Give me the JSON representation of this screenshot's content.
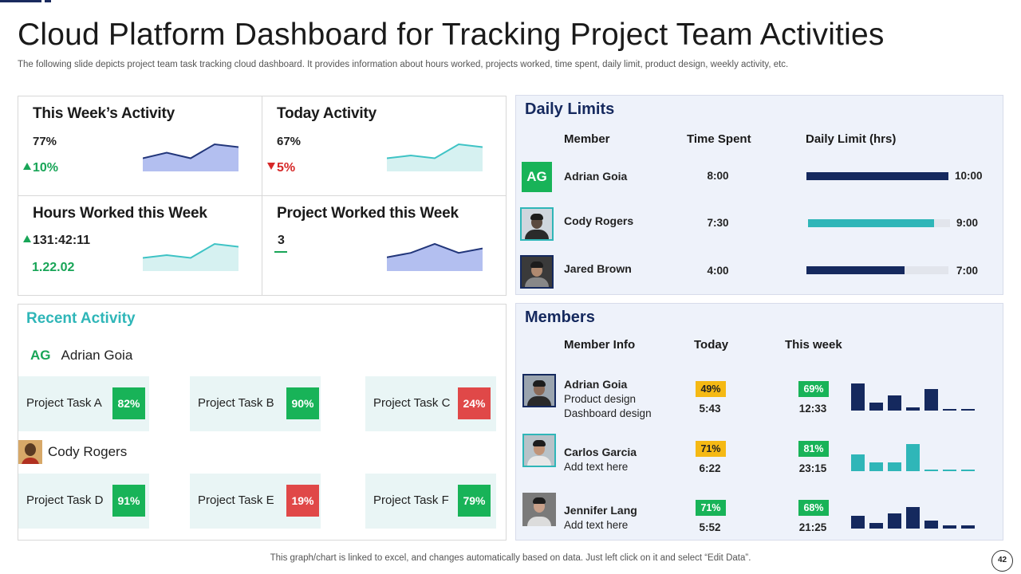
{
  "title": "Cloud Platform Dashboard for Tracking Project Team Activities",
  "subtitle": "The following slide depicts project team task tracking cloud dashboard. It provides information about hours worked, projects worked, time spent, daily limit, product design, weekly activity,  etc.",
  "activity": {
    "week": {
      "title": "This Week’s Activity",
      "value": "77%",
      "delta": "10%",
      "direction": "up",
      "trend": [
        3,
        5,
        3,
        8,
        7
      ]
    },
    "today": {
      "title": "Today Activity",
      "value": "67%",
      "delta": "5%",
      "direction": "down",
      "trend": [
        3,
        4,
        3,
        8,
        7
      ]
    },
    "hours": {
      "title": "Hours Worked this Week",
      "value": "131:42:11",
      "direction": "up",
      "sub": "1.22.02",
      "trend": [
        3,
        4,
        3,
        8,
        7
      ]
    },
    "projects": {
      "title": "Project Worked this Week",
      "value": "3",
      "trend": [
        2,
        3,
        5,
        3,
        4
      ]
    }
  },
  "recent": {
    "title": "Recent Activity",
    "people": [
      {
        "initials": "AG",
        "name": "Adrian Goia",
        "tasks": [
          {
            "label": "Project  Task A",
            "pct": "82%",
            "status": "green"
          },
          {
            "label": "Project  Task B",
            "pct": "90%",
            "status": "green"
          },
          {
            "label": "Project  Task C",
            "pct": "24%",
            "status": "red"
          }
        ]
      },
      {
        "initials": "",
        "name": "Cody Rogers",
        "tasks": [
          {
            "label": "Project  Task D",
            "pct": "91%",
            "status": "green"
          },
          {
            "label": "Project  Task E",
            "pct": "19%",
            "status": "red"
          },
          {
            "label": "Project  Task F",
            "pct": "79%",
            "status": "green"
          }
        ]
      }
    ]
  },
  "daily_limits": {
    "title": "Daily Limits",
    "headers": {
      "member": "Member",
      "time_spent": "Time Spent",
      "limit": "Daily Limit (hrs)"
    },
    "rows": [
      {
        "avatar": "AG",
        "name": "Adrian Goia",
        "time": "8:00",
        "limit": "10:00",
        "fraction": 1.0,
        "color": "#15295e"
      },
      {
        "avatar": "",
        "name": "Cody Rogers",
        "time": "7:30",
        "limit": "9:00",
        "fraction": 0.89,
        "color": "#2fb6b8"
      },
      {
        "avatar": "",
        "name": "Jared Brown",
        "time": "4:00",
        "limit": "7:00",
        "fraction": 0.69,
        "color": "#15295e"
      }
    ]
  },
  "members": {
    "title": "Members",
    "headers": {
      "info": "Member Info",
      "today": "Today",
      "week": "This week"
    },
    "rows": [
      {
        "name": "Adrian Goia",
        "info": [
          "Product design",
          "Dashboard design"
        ],
        "today_pct": "49%",
        "today_time": "5:43",
        "today_color": "yellow",
        "week_pct": "69%",
        "week_time": "12:33",
        "bars": [
          28,
          8,
          16,
          3,
          22,
          2,
          2
        ],
        "bar_color": "#15295e"
      },
      {
        "name": "Carlos Garcia",
        "info": [
          "Add text here"
        ],
        "today_pct": "71%",
        "today_time": "6:22",
        "today_color": "yellow",
        "week_pct": "81%",
        "week_time": "23:15",
        "bars": [
          17,
          9,
          9,
          28,
          2,
          2,
          2
        ],
        "bar_color": "#2fb6b8"
      },
      {
        "name": "Jennifer Lang",
        "info": [
          "Add text here"
        ],
        "today_pct": "71%",
        "today_time": "5:52",
        "today_color": "green",
        "week_pct": "68%",
        "week_time": "21:25",
        "bars": [
          13,
          6,
          16,
          22,
          8,
          3,
          3
        ],
        "bar_color": "#15295e"
      }
    ]
  },
  "colors": {
    "navy": "#15295e",
    "teal": "#2fb6b8",
    "green": "#18b358",
    "red": "#e04848",
    "yellow": "#f5b914"
  },
  "footer": "This graph/chart is linked to excel,  and changes automatically based on data. Just left click on it and select “Edit Data”.",
  "page_number": "42"
}
